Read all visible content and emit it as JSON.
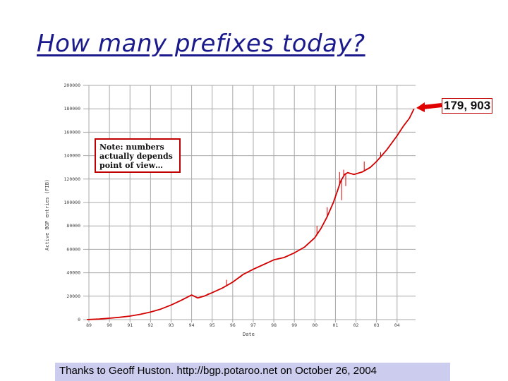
{
  "slide": {
    "title": "How many prefixes today?",
    "callout": "179, 903",
    "note": "Note: numbers actually depends point of view…",
    "credit": "Thanks to Geoff Huston. http://bgp.potaroo.net on October 26, 2004"
  },
  "colors": {
    "line": "#d40000",
    "grid": "#a8a8a8",
    "callout": "#e00000",
    "title": "#1a1a8c",
    "credit_bg": "#ccccee"
  },
  "chart_data": {
    "type": "line",
    "title": "",
    "xlabel": "Date",
    "ylabel": "Active BGP entries (FIB)",
    "x_ticks": [
      "89",
      "90",
      "91",
      "92",
      "93",
      "94",
      "95",
      "96",
      "97",
      "98",
      "99",
      "00",
      "01",
      "02",
      "03",
      "04"
    ],
    "y_ticks": [
      "0",
      "20000",
      "40000",
      "60000",
      "80000",
      "100000",
      "120000",
      "140000",
      "160000",
      "180000",
      "200000"
    ],
    "xlim": [
      1989,
      2004.9
    ],
    "ylim": [
      0,
      200000
    ],
    "grid": true,
    "series": [
      {
        "x": [
          1988.9,
          1989.5,
          1990.0,
          1990.5,
          1991.0,
          1991.5,
          1992.0,
          1992.5,
          1993.0,
          1993.5,
          1994.0,
          1994.3,
          1994.6,
          1995.0,
          1995.5,
          1996.0,
          1996.5,
          1997.0,
          1997.5,
          1998.0,
          1998.5,
          1999.0,
          1999.5,
          2000.0,
          2000.3,
          2000.6,
          2000.9,
          2001.1,
          2001.25,
          2001.45,
          2001.6,
          2001.9,
          2002.3,
          2002.7,
          2003.0,
          2003.5,
          2004.0,
          2004.3,
          2004.6,
          2004.82
        ],
        "y": [
          0,
          500,
          1200,
          2000,
          3000,
          4500,
          6500,
          9000,
          12500,
          16500,
          21000,
          18500,
          20000,
          23000,
          27000,
          32000,
          38500,
          43000,
          47000,
          51000,
          53000,
          57000,
          62000,
          70000,
          78000,
          88000,
          100000,
          110000,
          118000,
          124000,
          125500,
          124000,
          126000,
          130000,
          135000,
          145000,
          157000,
          165000,
          172000,
          179903
        ],
        "spikes": [
          {
            "x": 1994.8,
            "y": 22500
          },
          {
            "x": 1995.7,
            "y": 34000
          },
          {
            "x": 1996.4,
            "y": 36000
          },
          {
            "x": 2000.1,
            "y": 80000
          },
          {
            "x": 2000.6,
            "y": 96000
          },
          {
            "x": 2001.2,
            "y": 126000
          },
          {
            "x": 2001.3,
            "y": 102000
          },
          {
            "x": 2001.4,
            "y": 128000
          },
          {
            "x": 2001.5,
            "y": 114000
          },
          {
            "x": 2002.4,
            "y": 135000
          },
          {
            "x": 2003.2,
            "y": 143000
          }
        ]
      }
    ],
    "annotations": [
      "179, 903"
    ]
  }
}
